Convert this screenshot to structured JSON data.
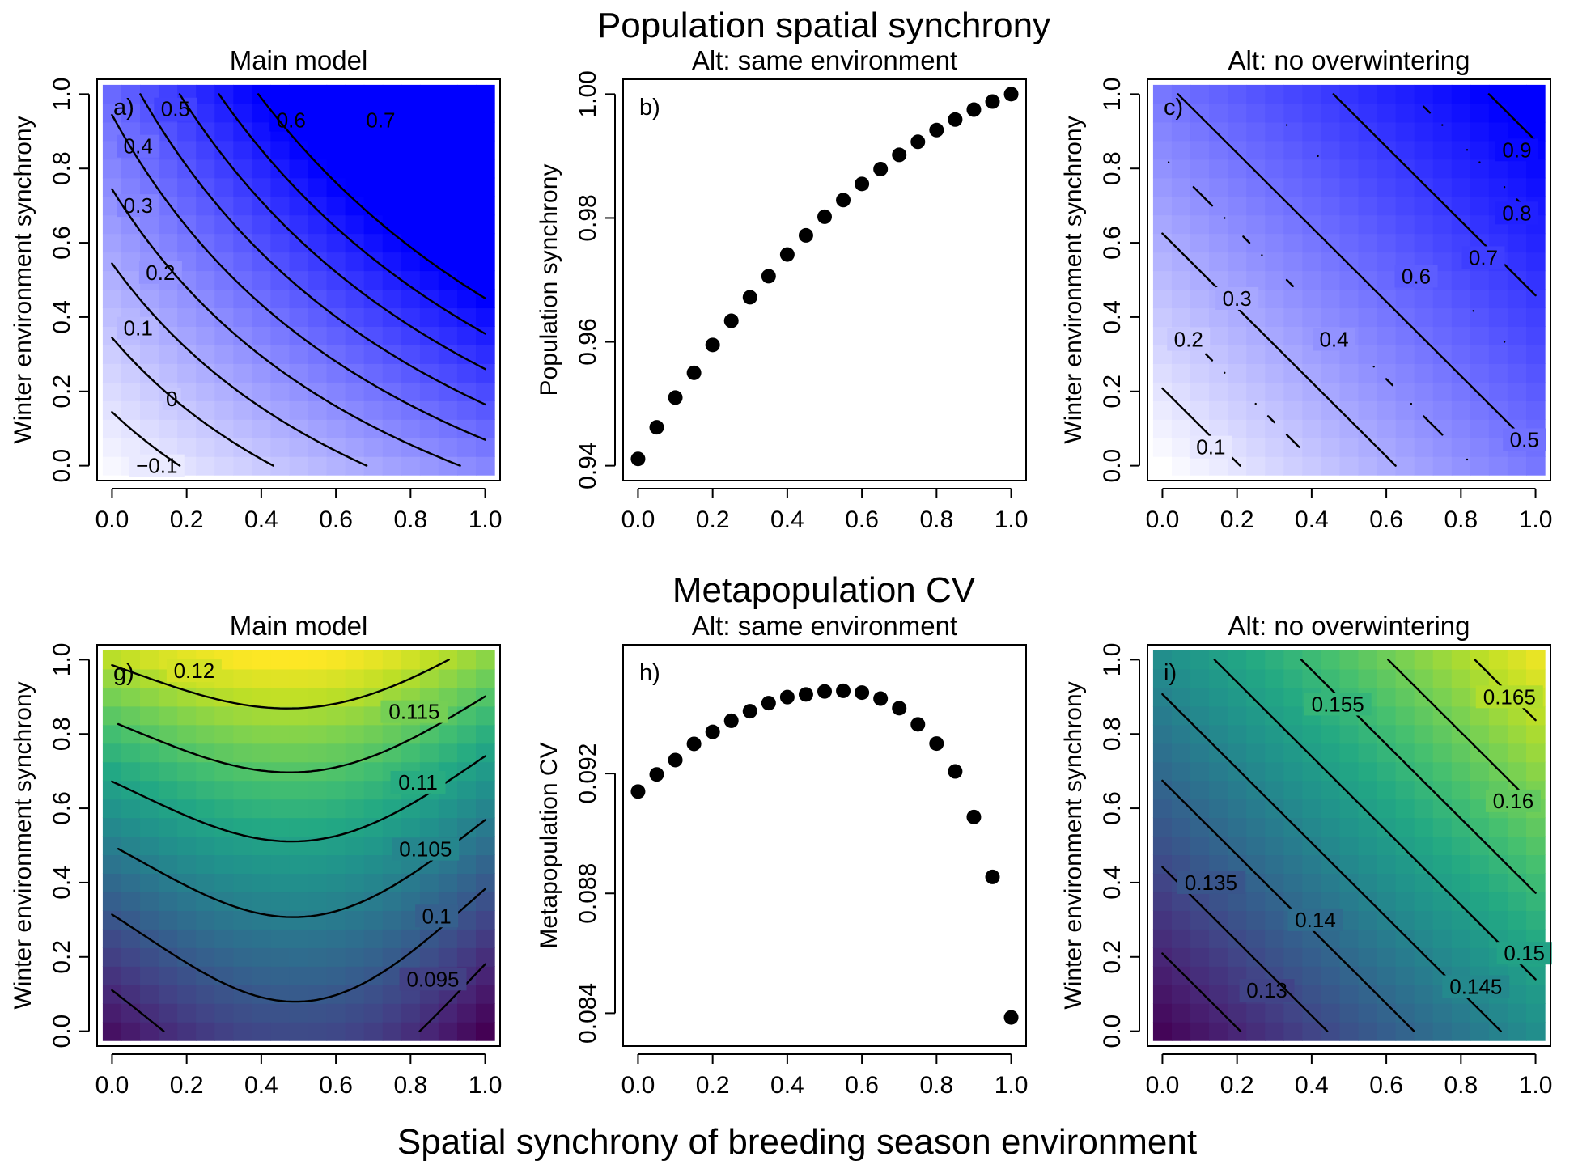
{
  "figure": {
    "top_title": "Population spatial synchrony",
    "middle_title": "Metapopulation CV",
    "x_axis_title": "Spatial synchrony of breeding season environment"
  },
  "chart_data": [
    {
      "id": "a",
      "type": "heatmap",
      "panel_label": "a)",
      "title": "Main model",
      "xlabel": "",
      "ylabel": "Winter environment synchrony",
      "xlim": [
        0,
        1
      ],
      "ylim": [
        0,
        1
      ],
      "x_ticks": [
        "0.0",
        "0.2",
        "0.4",
        "0.6",
        "0.8",
        "1.0"
      ],
      "y_ticks": [
        "0.0",
        "0.2",
        "0.4",
        "0.6",
        "0.8",
        "1.0"
      ],
      "colormap": {
        "low": "#f2c4c4",
        "mid": "#ffffff",
        "high": "#0000ff",
        "range": [
          -0.1,
          0.9
        ]
      },
      "model": {
        "form": "kz",
        "c0": 0.0276,
        "c1": 0.5004,
        "c2": 0.3992,
        "k": 0.55
      },
      "contours": [
        {
          "level": -0.1,
          "label": "−0.1",
          "label_at": [
            0.12,
            0.0
          ]
        },
        {
          "level": 0,
          "label": "0",
          "label_at": [
            0.16,
            0.18
          ]
        },
        {
          "level": 0.1,
          "label": "0.1",
          "label_at": [
            0.07,
            0.37
          ]
        },
        {
          "level": 0.2,
          "label": "0.2",
          "label_at": [
            0.13,
            0.52
          ]
        },
        {
          "level": 0.3,
          "label": "0.3",
          "label_at": [
            0.07,
            0.7
          ]
        },
        {
          "level": 0.4,
          "label": "0.4",
          "label_at": [
            0.07,
            0.86
          ]
        },
        {
          "level": 0.5,
          "label": "0.5",
          "label_at": [
            0.17,
            0.96
          ]
        },
        {
          "level": 0.6,
          "label": "0.6",
          "label_at": [
            0.48,
            0.93
          ]
        },
        {
          "level": 0.7,
          "label": "0.7",
          "label_at": [
            0.72,
            0.93
          ]
        },
        {
          "level": 0.8,
          "label": "",
          "label_at": null
        },
        {
          "level": 0.9,
          "label": "",
          "label_at": null
        }
      ]
    },
    {
      "id": "b",
      "type": "scatter",
      "panel_label": "b)",
      "title": "Alt: same environment",
      "xlabel": "",
      "ylabel": "Population synchrony",
      "xlim": [
        0,
        1
      ],
      "ylim": [
        0.94,
        1.0
      ],
      "x_ticks": [
        "0.0",
        "0.2",
        "0.4",
        "0.6",
        "0.8",
        "1.0"
      ],
      "y_ticks": [
        "0.94",
        "0.96",
        "0.98",
        "1.00"
      ],
      "x": [
        0,
        0.05,
        0.1,
        0.15,
        0.2,
        0.25,
        0.3,
        0.35,
        0.4,
        0.45,
        0.5,
        0.55,
        0.6,
        0.65,
        0.7,
        0.75,
        0.8,
        0.85,
        0.9,
        0.95,
        1.0
      ],
      "y": [
        0.9411,
        0.9462,
        0.951,
        0.955,
        0.9595,
        0.9634,
        0.9672,
        0.9706,
        0.9741,
        0.9772,
        0.9802,
        0.9829,
        0.9855,
        0.9879,
        0.9902,
        0.9923,
        0.9942,
        0.9959,
        0.9975,
        0.9988,
        1.0
      ]
    },
    {
      "id": "c",
      "type": "heatmap",
      "panel_label": "c)",
      "title": "Alt: no overwintering",
      "xlabel": "",
      "ylabel": "Winter environment synchrony",
      "xlim": [
        0,
        1
      ],
      "ylim": [
        0,
        1
      ],
      "x_ticks": [
        "0.0",
        "0.2",
        "0.4",
        "0.6",
        "0.8",
        "1.0"
      ],
      "y_ticks": [
        "0.0",
        "0.2",
        "0.4",
        "0.6",
        "0.8",
        "1.0"
      ],
      "colormap": {
        "low": "#f2c4c4",
        "mid": "#ffffff",
        "high": "#0000ff",
        "range": [
          -0.1,
          0.9
        ]
      },
      "model": {
        "form": "linear",
        "c0": 0.0,
        "c1": 0.48,
        "c2": 0.48
      },
      "contours": [
        {
          "level": 0.1,
          "label": "0.1",
          "label_at": [
            0.13,
            0.05
          ]
        },
        {
          "level": 0.2,
          "label": "0.2",
          "label_at": [
            0.07,
            0.34
          ]
        },
        {
          "level": 0.3,
          "label": "0.3",
          "label_at": [
            0.2,
            0.45
          ]
        },
        {
          "level": 0.4,
          "label": "0.4",
          "label_at": [
            0.46,
            0.34
          ]
        },
        {
          "level": 0.5,
          "label": "0.5",
          "label_at": [
            0.97,
            0.07
          ]
        },
        {
          "level": 0.6,
          "label": "0.6",
          "label_at": [
            0.68,
            0.51
          ]
        },
        {
          "level": 0.7,
          "label": "0.7",
          "label_at": [
            0.86,
            0.56
          ]
        },
        {
          "level": 0.8,
          "label": "0.8",
          "label_at": [
            0.95,
            0.68
          ]
        },
        {
          "level": 0.9,
          "label": "0.9",
          "label_at": [
            0.95,
            0.85
          ]
        }
      ]
    },
    {
      "id": "g",
      "type": "heatmap",
      "panel_label": "g)",
      "title": "Main model",
      "xlabel": "",
      "ylabel": "Winter environment synchrony",
      "xlim": [
        0,
        1
      ],
      "ylim": [
        0,
        1
      ],
      "x_ticks": [
        "0.0",
        "0.2",
        "0.4",
        "0.6",
        "0.8",
        "1.0"
      ],
      "y_ticks": [
        "0.0",
        "0.2",
        "0.4",
        "0.6",
        "0.8",
        "1.0"
      ],
      "colormap": {
        "scheme": "viridis",
        "range": [
          0.091,
          0.124
        ]
      },
      "model": {
        "form": "hump",
        "c0": 0.0925,
        "c1": 0.02,
        "c2": -0.02,
        "c3": 0.0265
      },
      "contours": [
        {
          "level": 0.095,
          "label": "0.095",
          "label_at": [
            0.86,
            0.14
          ]
        },
        {
          "level": 0.1,
          "label": "0.1",
          "label_at": [
            0.87,
            0.31
          ]
        },
        {
          "level": 0.105,
          "label": "0.105",
          "label_at": [
            0.84,
            0.49
          ]
        },
        {
          "level": 0.11,
          "label": "0.11",
          "label_at": [
            0.82,
            0.67
          ]
        },
        {
          "level": 0.115,
          "label": "0.115",
          "label_at": [
            0.81,
            0.86
          ]
        },
        {
          "level": 0.12,
          "label": "0.12",
          "label_at": [
            0.22,
            0.97
          ]
        }
      ]
    },
    {
      "id": "h",
      "type": "scatter",
      "panel_label": "h)",
      "title": "Alt: same environment",
      "xlabel": "",
      "ylabel": "Metapopulation CV",
      "xlim": [
        0,
        1
      ],
      "ylim": [
        0.0834,
        0.0958
      ],
      "x_ticks": [
        "0.0",
        "0.2",
        "0.4",
        "0.6",
        "0.8",
        "1.0"
      ],
      "y_ticks": [
        "0.084",
        "0.088",
        "0.092"
      ],
      "x": [
        0,
        0.05,
        0.1,
        0.15,
        0.2,
        0.25,
        0.3,
        0.35,
        0.4,
        0.45,
        0.5,
        0.55,
        0.6,
        0.65,
        0.7,
        0.75,
        0.8,
        0.85,
        0.9,
        0.95,
        1.0
      ],
      "y": [
        0.0914,
        0.09197,
        0.09245,
        0.09299,
        0.09339,
        0.09376,
        0.09408,
        0.09435,
        0.09455,
        0.09464,
        0.09474,
        0.09476,
        0.0947,
        0.0945,
        0.09418,
        0.09364,
        0.093,
        0.09207,
        0.09055,
        0.08855,
        0.08386
      ]
    },
    {
      "id": "i",
      "type": "heatmap",
      "panel_label": "i)",
      "title": "Alt: no overwintering",
      "xlabel": "",
      "ylabel": "Winter environment synchrony",
      "xlim": [
        0,
        1
      ],
      "ylim": [
        0,
        1
      ],
      "x_ticks": [
        "0.0",
        "0.2",
        "0.4",
        "0.6",
        "0.8",
        "1.0"
      ],
      "y_ticks": [
        "0.0",
        "0.2",
        "0.4",
        "0.6",
        "0.8",
        "1.0"
      ],
      "colormap": {
        "scheme": "viridis",
        "range": [
          0.125,
          0.17
        ]
      },
      "model": {
        "form": "linear",
        "c0": 0.1255,
        "c1": 0.0215,
        "c2": 0.0215
      },
      "contours": [
        {
          "level": 0.13,
          "label": "0.13",
          "label_at": [
            0.28,
            0.11
          ]
        },
        {
          "level": 0.135,
          "label": "0.135",
          "label_at": [
            0.13,
            0.4
          ]
        },
        {
          "level": 0.14,
          "label": "0.14",
          "label_at": [
            0.41,
            0.3
          ]
        },
        {
          "level": 0.145,
          "label": "0.145",
          "label_at": [
            0.84,
            0.12
          ]
        },
        {
          "level": 0.15,
          "label": "0.15",
          "label_at": [
            0.97,
            0.21
          ]
        },
        {
          "level": 0.155,
          "label": "0.155",
          "label_at": [
            0.47,
            0.88
          ]
        },
        {
          "level": 0.16,
          "label": "0.16",
          "label_at": [
            0.94,
            0.62
          ]
        },
        {
          "level": 0.165,
          "label": "0.165",
          "label_at": [
            0.93,
            0.9
          ]
        }
      ]
    }
  ]
}
